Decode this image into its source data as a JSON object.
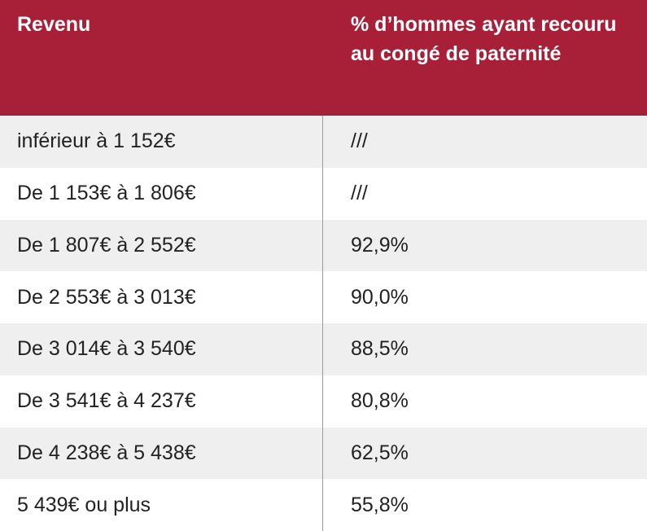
{
  "table": {
    "headers": [
      "Revenu",
      "% d’hommes ayant recouru au congé de paternité"
    ],
    "rows": [
      [
        "inférieur à 1 152€",
        "///"
      ],
      [
        "De 1 153€ à 1 806€",
        "///"
      ],
      [
        "De 1 807€ à 2 552€",
        "92,9%"
      ],
      [
        "De 2 553€ à 3 013€",
        "90,0%"
      ],
      [
        "De 3 014€ à 3 540€",
        "88,5%"
      ],
      [
        "De 3 541€ à 4 237€",
        "80,8%"
      ],
      [
        "De 4 238€ à 5 438€",
        "62,5%"
      ],
      [
        "5 439€ ou plus",
        "55,8%"
      ]
    ]
  },
  "colors": {
    "header_bg": "#a72038",
    "header_text": "#ffffff",
    "row_alt_bg": "#efefef",
    "row_bg": "#ffffff",
    "divider": "#9a9a9a"
  }
}
